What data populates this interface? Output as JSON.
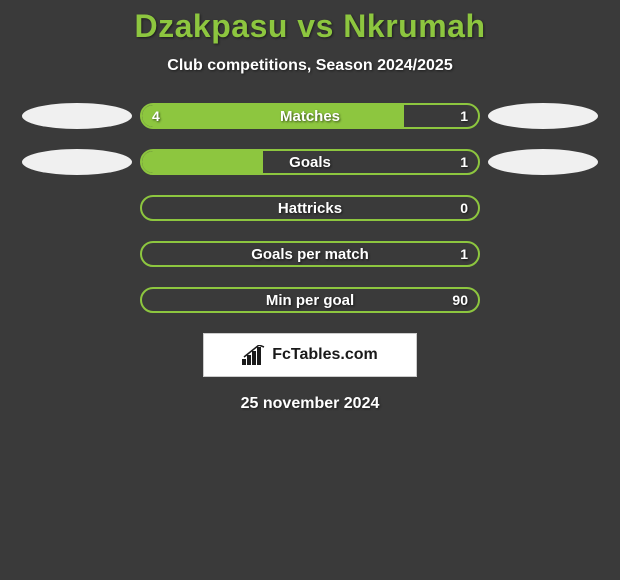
{
  "title": "Dzakpasu vs Nkrumah",
  "title_color": "#8dc63f",
  "subtitle": "Club competitions, Season 2024/2025",
  "background_color": "#3a3a3a",
  "text_color": "#ffffff",
  "fill_color": "#8dc63f",
  "border_color": "#8dc63f",
  "ellipse_color": "#f0f0f0",
  "rows": [
    {
      "label": "Matches",
      "left": "4",
      "right": "1",
      "fill_pct": 78,
      "show_ellipse": true
    },
    {
      "label": "Goals",
      "left": "",
      "right": "1",
      "fill_pct": 36,
      "show_ellipse": true
    },
    {
      "label": "Hattricks",
      "left": "",
      "right": "0",
      "fill_pct": 0,
      "show_ellipse": false
    },
    {
      "label": "Goals per match",
      "left": "",
      "right": "1",
      "fill_pct": 0,
      "show_ellipse": false
    },
    {
      "label": "Min per goal",
      "left": "",
      "right": "90",
      "fill_pct": 0,
      "show_ellipse": false
    }
  ],
  "badge_text": "FcTables.com",
  "date": "25 november 2024"
}
